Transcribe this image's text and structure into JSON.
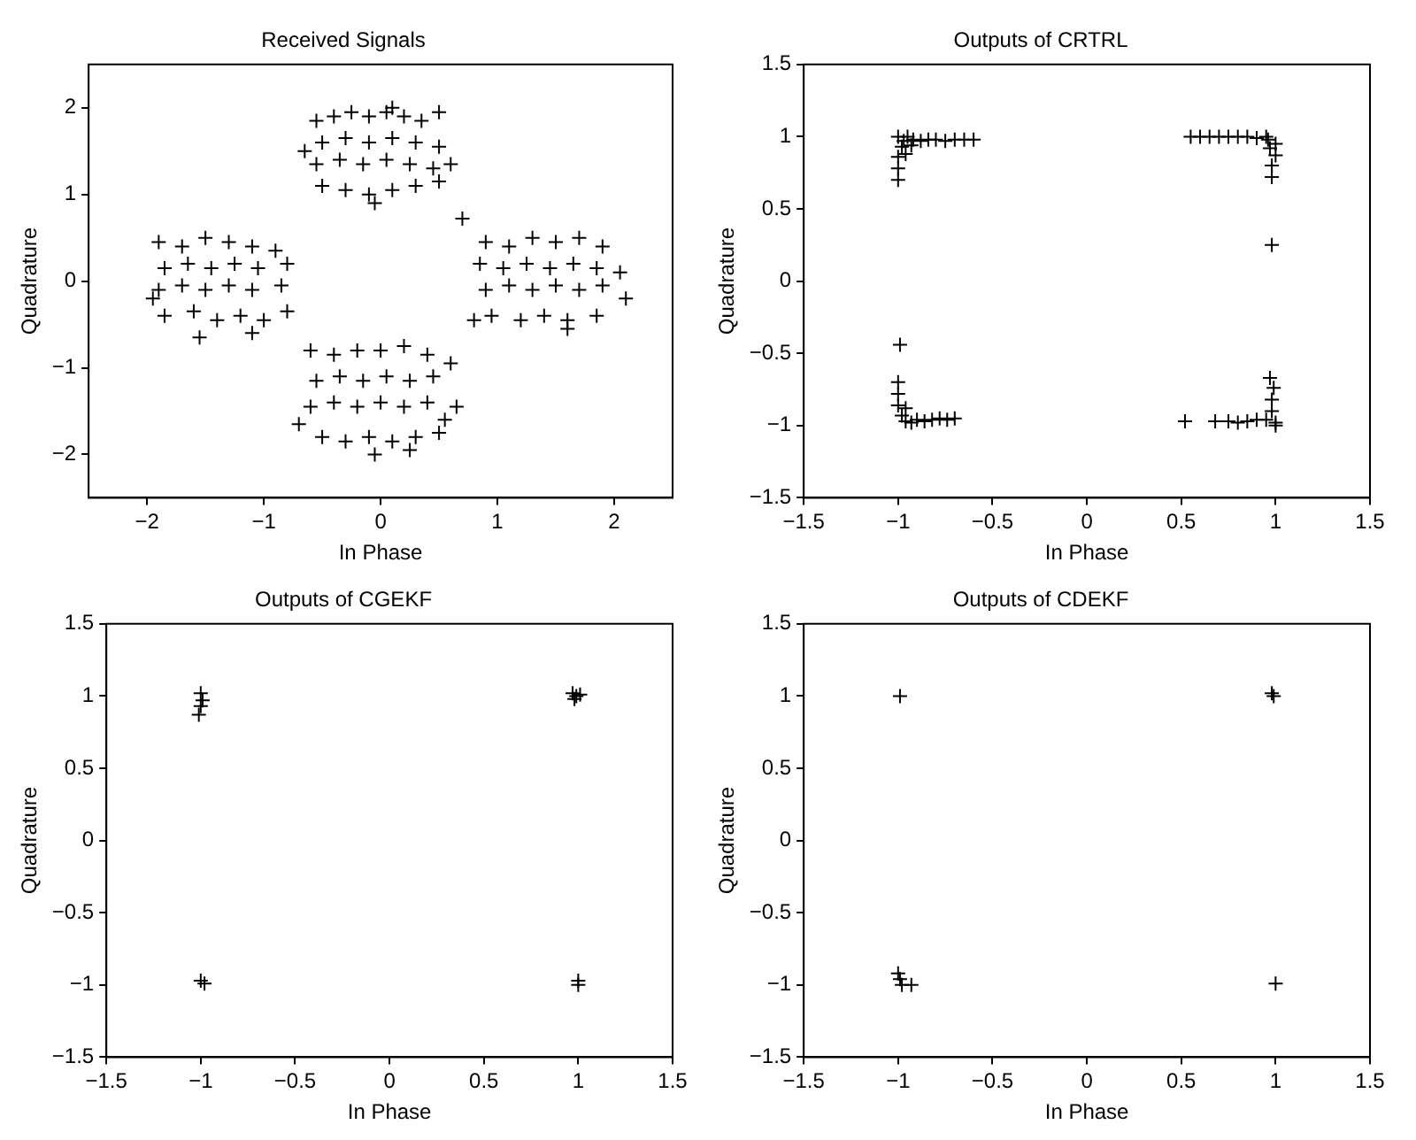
{
  "chart_data": [
    {
      "type": "scatter",
      "title": "Received Signals",
      "xlabel": "In Phase",
      "ylabel": "Quadrature",
      "xlim": [
        -2.5,
        2.5
      ],
      "ylim": [
        -2.5,
        2.5
      ],
      "xticks": [
        -2,
        -1,
        0,
        1,
        2
      ],
      "yticks": [
        -2,
        -1,
        0,
        1,
        2
      ],
      "marker": "cross",
      "grid": false,
      "legend": false,
      "x": [
        -0.55,
        -0.4,
        -0.25,
        -0.1,
        0.05,
        0.2,
        0.35,
        0.5,
        -0.5,
        -0.3,
        -0.1,
        0.1,
        0.3,
        0.5,
        -0.55,
        -0.35,
        -0.15,
        0.05,
        0.25,
        0.45,
        -0.5,
        -0.3,
        -0.1,
        0.1,
        0.3,
        -0.65,
        0.6,
        0.1,
        0.5,
        -0.05,
        0.7,
        -1.9,
        -1.7,
        -1.5,
        -1.3,
        -1.1,
        -0.9,
        -1.85,
        -1.65,
        -1.45,
        -1.25,
        -1.05,
        -0.8,
        -1.9,
        -1.7,
        -1.5,
        -1.3,
        -1.1,
        -0.85,
        -1.85,
        -1.6,
        -1.4,
        -1.2,
        -1.0,
        -0.8,
        -1.95,
        -1.55,
        -1.1,
        0.9,
        1.1,
        1.3,
        1.5,
        1.7,
        1.9,
        0.85,
        1.05,
        1.25,
        1.45,
        1.65,
        1.85,
        2.05,
        0.9,
        1.1,
        1.3,
        1.5,
        1.7,
        1.9,
        0.95,
        1.2,
        1.4,
        1.6,
        1.85,
        0.8,
        2.1,
        1.6,
        -0.6,
        -0.4,
        -0.2,
        0.0,
        0.2,
        0.4,
        0.6,
        -0.55,
        -0.35,
        -0.15,
        0.05,
        0.25,
        0.45,
        -0.6,
        -0.4,
        -0.2,
        0.0,
        0.2,
        0.4,
        0.55,
        -0.5,
        -0.3,
        -0.1,
        0.1,
        0.3,
        0.5,
        -0.7,
        0.65,
        -0.05,
        0.25
      ],
      "values": [
        1.85,
        1.9,
        1.95,
        1.9,
        1.95,
        1.9,
        1.85,
        1.95,
        1.6,
        1.65,
        1.6,
        1.65,
        1.6,
        1.55,
        1.35,
        1.4,
        1.35,
        1.4,
        1.35,
        1.3,
        1.1,
        1.05,
        1.0,
        1.05,
        1.1,
        1.5,
        1.35,
        2.0,
        1.15,
        0.9,
        0.72,
        0.45,
        0.4,
        0.5,
        0.45,
        0.4,
        0.35,
        0.15,
        0.2,
        0.15,
        0.2,
        0.15,
        0.2,
        -0.1,
        -0.05,
        -0.1,
        -0.05,
        -0.1,
        -0.05,
        -0.4,
        -0.35,
        -0.45,
        -0.4,
        -0.45,
        -0.35,
        -0.2,
        -0.65,
        -0.6,
        0.45,
        0.4,
        0.5,
        0.45,
        0.5,
        0.4,
        0.2,
        0.15,
        0.2,
        0.15,
        0.2,
        0.15,
        0.1,
        -0.1,
        -0.05,
        -0.1,
        -0.05,
        -0.1,
        -0.05,
        -0.4,
        -0.45,
        -0.4,
        -0.45,
        -0.4,
        -0.45,
        -0.2,
        -0.55,
        -0.8,
        -0.85,
        -0.8,
        -0.8,
        -0.75,
        -0.85,
        -0.95,
        -1.15,
        -1.1,
        -1.15,
        -1.1,
        -1.15,
        -1.1,
        -1.45,
        -1.4,
        -1.45,
        -1.4,
        -1.45,
        -1.4,
        -1.6,
        -1.8,
        -1.85,
        -1.8,
        -1.85,
        -1.8,
        -1.75,
        -1.65,
        -1.45,
        -2.0,
        -1.95
      ],
      "color": "#000000"
    },
    {
      "type": "scatter",
      "title": "Outputs of CRTRL",
      "xlabel": "In Phase",
      "ylabel": "Quadrature",
      "xlim": [
        -1.5,
        1.5
      ],
      "ylim": [
        -1.5,
        1.5
      ],
      "xticks": [
        -1.5,
        -1,
        -0.5,
        0,
        0.5,
        1,
        1.5
      ],
      "yticks": [
        -1.5,
        -1,
        -0.5,
        0,
        0.5,
        1,
        1.5
      ],
      "marker": "cross",
      "grid": false,
      "legend": false,
      "x": [
        -1.0,
        -1.0,
        -1.0,
        -0.98,
        -1.0,
        -0.97,
        -0.95,
        -0.92,
        -0.88,
        -0.84,
        -0.8,
        -0.75,
        -0.7,
        -0.65,
        -0.6,
        -0.96,
        -0.93,
        0.55,
        0.6,
        0.65,
        0.7,
        0.75,
        0.8,
        0.85,
        0.9,
        0.95,
        1.0,
        1.0,
        0.98,
        0.98,
        0.97,
        0.96,
        0.98,
        -0.99,
        -1.0,
        -1.0,
        -1.0,
        -0.98,
        -0.96,
        -0.93,
        -0.9,
        -0.86,
        -0.82,
        -0.78,
        -0.74,
        -0.7,
        -0.96,
        0.52,
        0.68,
        0.75,
        0.8,
        0.85,
        0.9,
        0.95,
        1.0,
        0.98,
        0.98,
        0.99,
        0.97,
        1.0
      ],
      "values": [
        0.7,
        0.78,
        0.86,
        0.93,
        1.0,
        0.97,
        1.0,
        0.98,
        0.97,
        0.98,
        0.98,
        0.97,
        0.98,
        0.98,
        0.98,
        0.88,
        0.94,
        1.0,
        1.0,
        1.0,
        1.0,
        1.0,
        1.0,
        1.0,
        0.99,
        1.0,
        0.95,
        0.87,
        0.8,
        0.72,
        0.92,
        0.98,
        0.25,
        -0.44,
        -0.7,
        -0.78,
        -0.86,
        -0.93,
        -0.97,
        -0.98,
        -0.96,
        -0.97,
        -0.96,
        -0.95,
        -0.96,
        -0.95,
        -0.88,
        -0.97,
        -0.97,
        -0.97,
        -0.98,
        -0.97,
        -0.96,
        -0.96,
        -0.98,
        -0.9,
        -0.82,
        -0.74,
        -0.67,
        -1.0
      ],
      "color": "#000000"
    },
    {
      "type": "scatter",
      "title": "Outputs of CGEKF",
      "xlabel": "In Phase",
      "ylabel": "Quadrature",
      "xlim": [
        -1.5,
        1.5
      ],
      "ylim": [
        -1.5,
        1.5
      ],
      "xticks": [
        -1.5,
        -1,
        -0.5,
        0,
        0.5,
        1,
        1.5
      ],
      "yticks": [
        -1.5,
        -1,
        -0.5,
        0,
        0.5,
        1,
        1.5
      ],
      "marker": "cross",
      "grid": false,
      "legend": false,
      "x": [
        -1.0,
        -0.99,
        -1.0,
        -1.01,
        0.97,
        0.99,
        1.01,
        0.98,
        -1.0,
        -0.98,
        1.0,
        1.0
      ],
      "values": [
        1.02,
        0.97,
        0.93,
        0.87,
        1.02,
        1.0,
        1.01,
        0.98,
        -0.97,
        -0.99,
        -0.97,
        -1.0
      ],
      "color": "#000000"
    },
    {
      "type": "scatter",
      "title": "Outputs of CDEKF",
      "xlabel": "In Phase",
      "ylabel": "Quadrature",
      "xlim": [
        -1.5,
        1.5
      ],
      "ylim": [
        -1.5,
        1.5
      ],
      "xticks": [
        -1.5,
        -1,
        -0.5,
        0,
        0.5,
        1,
        1.5
      ],
      "yticks": [
        -1.5,
        -1,
        -0.5,
        0,
        0.5,
        1,
        1.5
      ],
      "marker": "cross",
      "grid": false,
      "legend": false,
      "x": [
        -0.99,
        0.98,
        0.99,
        -0.99,
        -0.98,
        -0.93,
        -1.0,
        1.0
      ],
      "values": [
        1.0,
        1.02,
        1.0,
        -0.96,
        -1.0,
        -1.0,
        -0.92,
        -0.99
      ],
      "color": "#000000"
    }
  ]
}
